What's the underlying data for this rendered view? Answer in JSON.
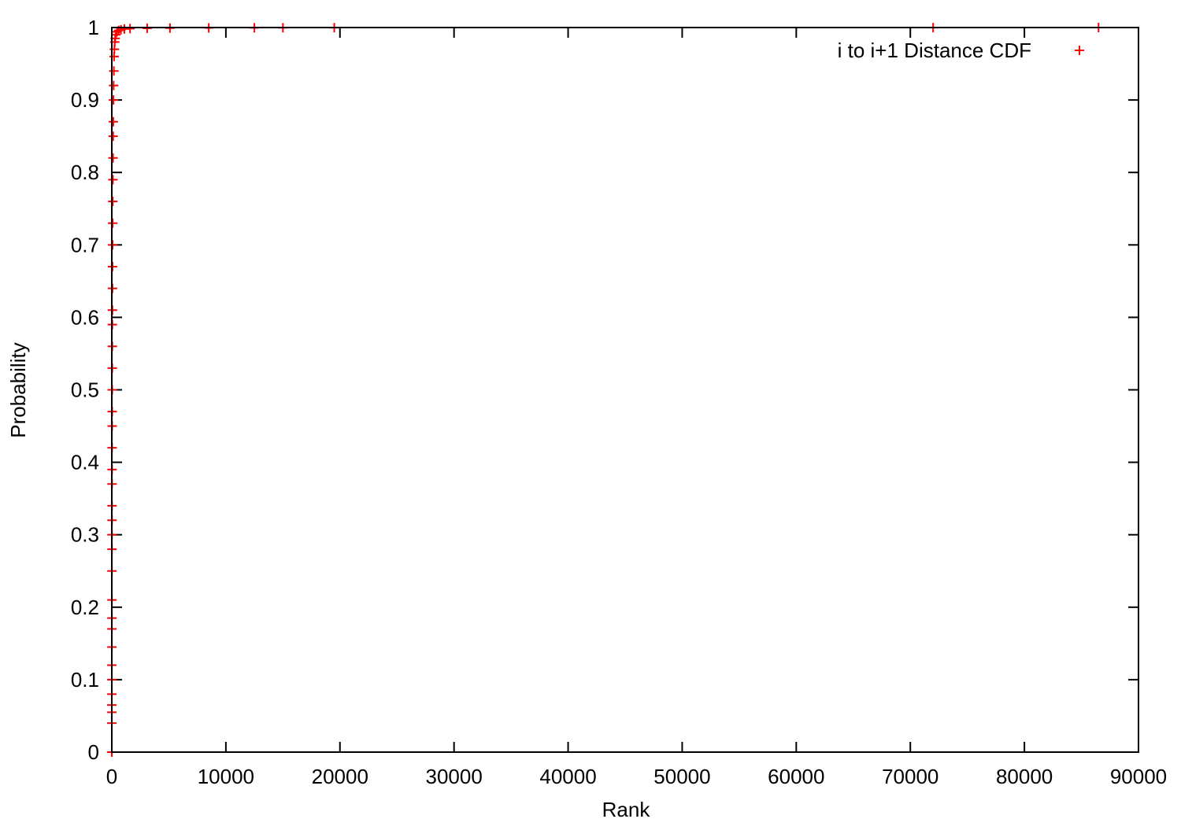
{
  "colors": {
    "series": "#ff0000",
    "axis": "#000000",
    "background": "#ffffff"
  },
  "chart_data": {
    "type": "scatter",
    "title": "",
    "xlabel": "Rank",
    "ylabel": "Probability",
    "xlim": [
      0,
      90000
    ],
    "ylim": [
      0,
      1
    ],
    "grid": false,
    "legend_position": "top-right",
    "marker": "+",
    "x_ticks": [
      0,
      10000,
      20000,
      30000,
      40000,
      50000,
      60000,
      70000,
      80000,
      90000
    ],
    "x_tick_labels": [
      "0",
      "10000",
      "20000",
      "30000",
      "40000",
      "50000",
      "60000",
      "70000",
      "80000",
      "90000"
    ],
    "y_ticks": [
      0,
      0.1,
      0.2,
      0.3,
      0.4,
      0.5,
      0.6,
      0.7,
      0.8,
      0.9,
      1
    ],
    "y_tick_labels": [
      "0",
      "0.1",
      "0.2",
      "0.3",
      "0.4",
      "0.5",
      "0.6",
      "0.7",
      "0.8",
      "0.9",
      "1"
    ],
    "series": [
      {
        "name": "i to i+1 Distance CDF",
        "color": "#ff0000",
        "points": [
          [
            0,
            0.0
          ],
          [
            1,
            0.04
          ],
          [
            2,
            0.055
          ],
          [
            3,
            0.065
          ],
          [
            4,
            0.08
          ],
          [
            5,
            0.1
          ],
          [
            6,
            0.12
          ],
          [
            7,
            0.145
          ],
          [
            8,
            0.17
          ],
          [
            10,
            0.185
          ],
          [
            11,
            0.21
          ],
          [
            13,
            0.25
          ],
          [
            15,
            0.28
          ],
          [
            17,
            0.3
          ],
          [
            19,
            0.32
          ],
          [
            21,
            0.34
          ],
          [
            23,
            0.37
          ],
          [
            25,
            0.39
          ],
          [
            28,
            0.42
          ],
          [
            31,
            0.45
          ],
          [
            34,
            0.47
          ],
          [
            37,
            0.5
          ],
          [
            41,
            0.53
          ],
          [
            45,
            0.56
          ],
          [
            50,
            0.59
          ],
          [
            55,
            0.61
          ],
          [
            60,
            0.64
          ],
          [
            66,
            0.67
          ],
          [
            73,
            0.7
          ],
          [
            80,
            0.73
          ],
          [
            88,
            0.76
          ],
          [
            97,
            0.79
          ],
          [
            107,
            0.82
          ],
          [
            118,
            0.85
          ],
          [
            130,
            0.87
          ],
          [
            145,
            0.9
          ],
          [
            160,
            0.92
          ],
          [
            180,
            0.94
          ],
          [
            200,
            0.96
          ],
          [
            230,
            0.97
          ],
          [
            260,
            0.98
          ],
          [
            300,
            0.985
          ],
          [
            350,
            0.99
          ],
          [
            450,
            0.994
          ],
          [
            600,
            0.996
          ],
          [
            800,
            0.997
          ],
          [
            1100,
            0.998
          ],
          [
            1600,
            0.9985
          ],
          [
            3100,
            0.999
          ],
          [
            5100,
            0.9993
          ],
          [
            8500,
            0.9995
          ],
          [
            12500,
            0.9996
          ],
          [
            15000,
            0.9997
          ],
          [
            19500,
            0.9998
          ],
          [
            72000,
            0.9999
          ],
          [
            86500,
            1.0
          ]
        ]
      }
    ]
  }
}
